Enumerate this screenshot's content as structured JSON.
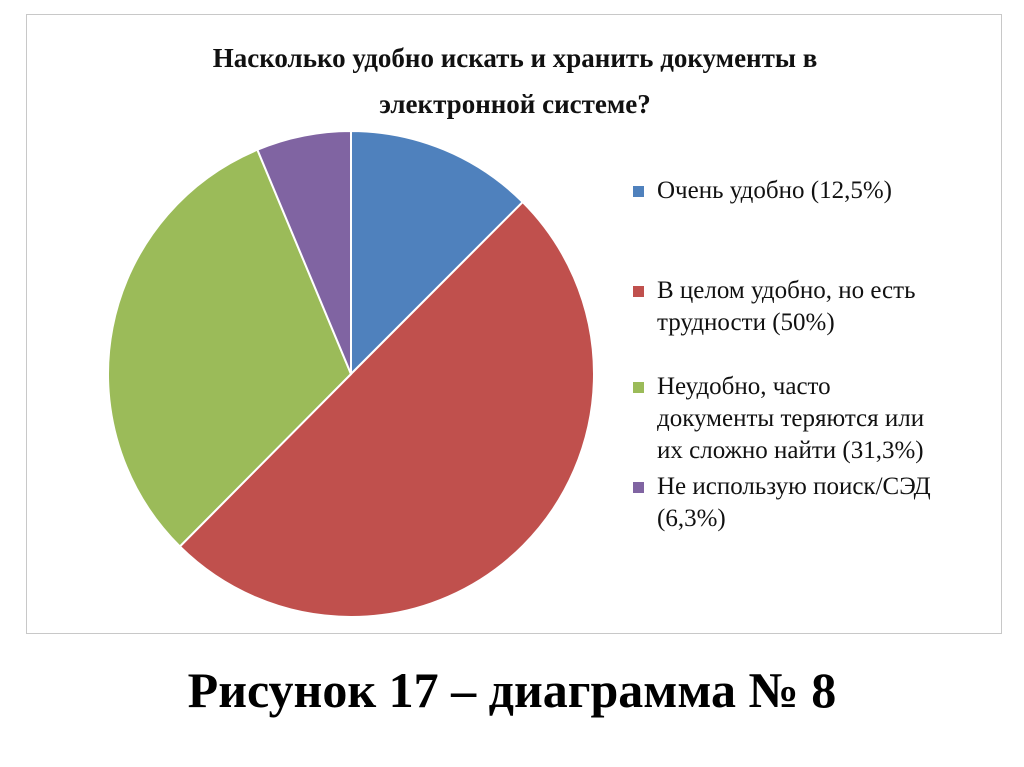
{
  "chart_data": {
    "type": "pie",
    "title_lines": [
      "Насколько удобно искать и хранить документы в",
      "электронной системе?"
    ],
    "categories": [
      "Очень удобно (12,5%)",
      "В целом удобно, но есть трудности (50%)",
      "Неудобно, часто документы теряются или их сложно найти (31,3%)",
      "Не использую поиск/СЭД (6,3%)"
    ],
    "values": [
      12.5,
      50,
      31.3,
      6.3
    ],
    "colors": [
      "#4F81BD",
      "#C0504D",
      "#9BBB59",
      "#8064A2"
    ],
    "legend_position": "right"
  },
  "legend": [
    {
      "lines": [
        "Очень удобно (12,5%)"
      ]
    },
    {
      "lines": [
        "В целом удобно, но есть",
        "трудности (50%)"
      ]
    },
    {
      "lines": [
        "Неудобно, часто",
        "документы теряются или",
        "их сложно найти (31,3%)"
      ]
    },
    {
      "lines": [
        "Не использую поиск/СЭД",
        "(6,3%)"
      ]
    }
  ],
  "caption": "Рисунок 17 – диаграмма № 8"
}
